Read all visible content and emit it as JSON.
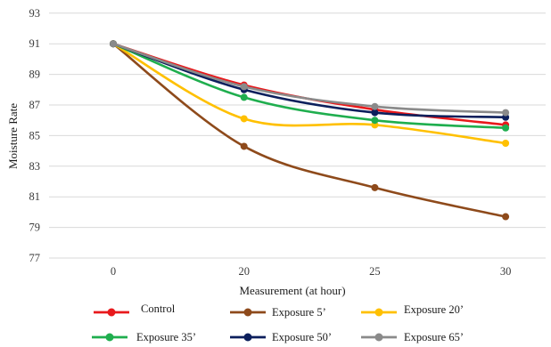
{
  "chart_data": {
    "type": "line",
    "smoothed": true,
    "x": [
      "0",
      "20",
      "25",
      "30"
    ],
    "xlabel": "Measurement (at hour)",
    "ylabel": "Moisture Rate",
    "ylim": [
      77,
      93
    ],
    "y_ticks": [
      "77",
      "79",
      "81",
      "83",
      "85",
      "87",
      "89",
      "91",
      "93"
    ],
    "grid": "horizontal",
    "legend": "bottom",
    "series": [
      {
        "name": "Control",
        "color": "#e8191c",
        "values": [
          91,
          88.3,
          86.7,
          85.7
        ]
      },
      {
        "name": "Exposure 5’",
        "color": "#8e4a1b",
        "values": [
          91,
          84.3,
          81.6,
          79.7
        ]
      },
      {
        "name": "Exposure 20’",
        "color": "#ffc000",
        "values": [
          91,
          86.1,
          85.7,
          84.5
        ]
      },
      {
        "name": "Exposure 35’",
        "color": "#1fae4e",
        "values": [
          91,
          87.5,
          86.0,
          85.5
        ]
      },
      {
        "name": "Exposure 50’",
        "color": "#0c1f5c",
        "values": [
          91,
          88.0,
          86.5,
          86.2
        ]
      },
      {
        "name": "Exposure 65’",
        "color": "#8a8a8a",
        "values": [
          91,
          88.2,
          86.9,
          86.5
        ]
      }
    ]
  }
}
